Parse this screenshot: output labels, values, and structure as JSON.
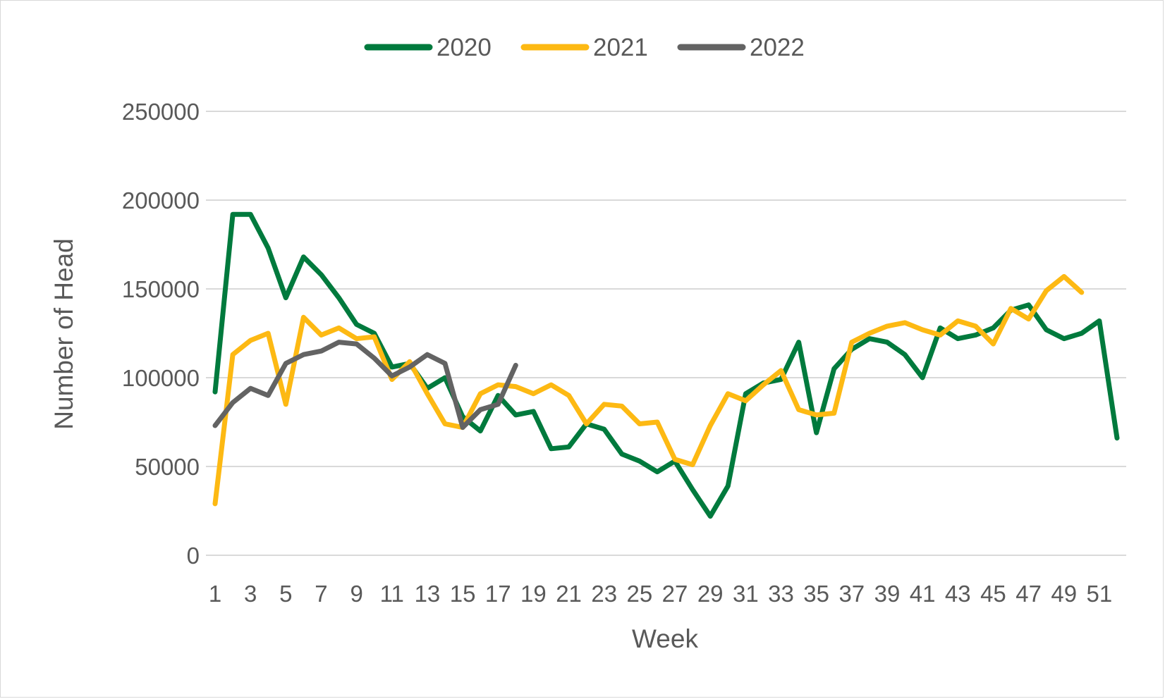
{
  "chart_data": {
    "type": "line",
    "title": "",
    "xlabel": "Week",
    "ylabel": "Number of Head",
    "ylim": [
      0,
      250000
    ],
    "yticks": [
      "0",
      "50000",
      "100000",
      "150000",
      "200000",
      "250000"
    ],
    "ytick_values": [
      0,
      50000,
      100000,
      150000,
      200000,
      250000
    ],
    "x": [
      1,
      2,
      3,
      4,
      5,
      6,
      7,
      8,
      9,
      10,
      11,
      12,
      13,
      14,
      15,
      16,
      17,
      18,
      19,
      20,
      21,
      22,
      23,
      24,
      25,
      26,
      27,
      28,
      29,
      30,
      31,
      32,
      33,
      34,
      35,
      36,
      37,
      38,
      39,
      40,
      41,
      42,
      43,
      44,
      45,
      46,
      47,
      48,
      49,
      50,
      51,
      52
    ],
    "xticks": [
      "1",
      "3",
      "5",
      "7",
      "9",
      "11",
      "13",
      "15",
      "17",
      "19",
      "21",
      "23",
      "25",
      "27",
      "29",
      "31",
      "33",
      "35",
      "37",
      "39",
      "41",
      "43",
      "45",
      "47",
      "49",
      "51"
    ],
    "xtick_values": [
      1,
      3,
      5,
      7,
      9,
      11,
      13,
      15,
      17,
      19,
      21,
      23,
      25,
      27,
      29,
      31,
      33,
      35,
      37,
      39,
      41,
      43,
      45,
      47,
      49,
      51
    ],
    "grid": true,
    "legend_position": "top",
    "series": [
      {
        "name": "2020",
        "color": "#007a3d",
        "values": [
          92000,
          192000,
          192000,
          173000,
          145000,
          168000,
          158000,
          145000,
          130000,
          125000,
          106000,
          108000,
          94000,
          100000,
          78000,
          70000,
          90000,
          79000,
          81000,
          60000,
          61000,
          74000,
          71000,
          57000,
          53000,
          47000,
          53000,
          37000,
          22000,
          39000,
          91000,
          97000,
          99000,
          120000,
          69000,
          105000,
          116000,
          122000,
          120000,
          113000,
          100000,
          128000,
          122000,
          124000,
          128000,
          138000,
          141000,
          127000,
          122000,
          125000,
          132000,
          66000
        ]
      },
      {
        "name": "2021",
        "color": "#fdb913",
        "values": [
          29000,
          113000,
          121000,
          125000,
          85000,
          134000,
          124000,
          128000,
          122000,
          123000,
          99000,
          109000,
          91000,
          74000,
          72000,
          91000,
          96000,
          95000,
          91000,
          96000,
          90000,
          74000,
          85000,
          84000,
          74000,
          75000,
          54000,
          51000,
          73000,
          91000,
          87000,
          96000,
          104000,
          82000,
          79000,
          80000,
          120000,
          125000,
          129000,
          131000,
          127000,
          124000,
          132000,
          129000,
          119000,
          139000,
          133000,
          149000,
          157000,
          148000,
          null,
          null
        ]
      },
      {
        "name": "2022",
        "color": "#636363",
        "values": [
          73000,
          86000,
          94000,
          90000,
          108000,
          113000,
          115000,
          120000,
          119000,
          111000,
          101000,
          106000,
          113000,
          108000,
          72000,
          82000,
          85000,
          107000,
          null,
          null,
          null,
          null,
          null,
          null,
          null,
          null,
          null,
          null,
          null,
          null,
          null,
          null,
          null,
          null,
          null,
          null,
          null,
          null,
          null,
          null,
          null,
          null,
          null,
          null,
          null,
          null,
          null,
          null,
          null,
          null,
          null,
          null
        ]
      }
    ]
  }
}
